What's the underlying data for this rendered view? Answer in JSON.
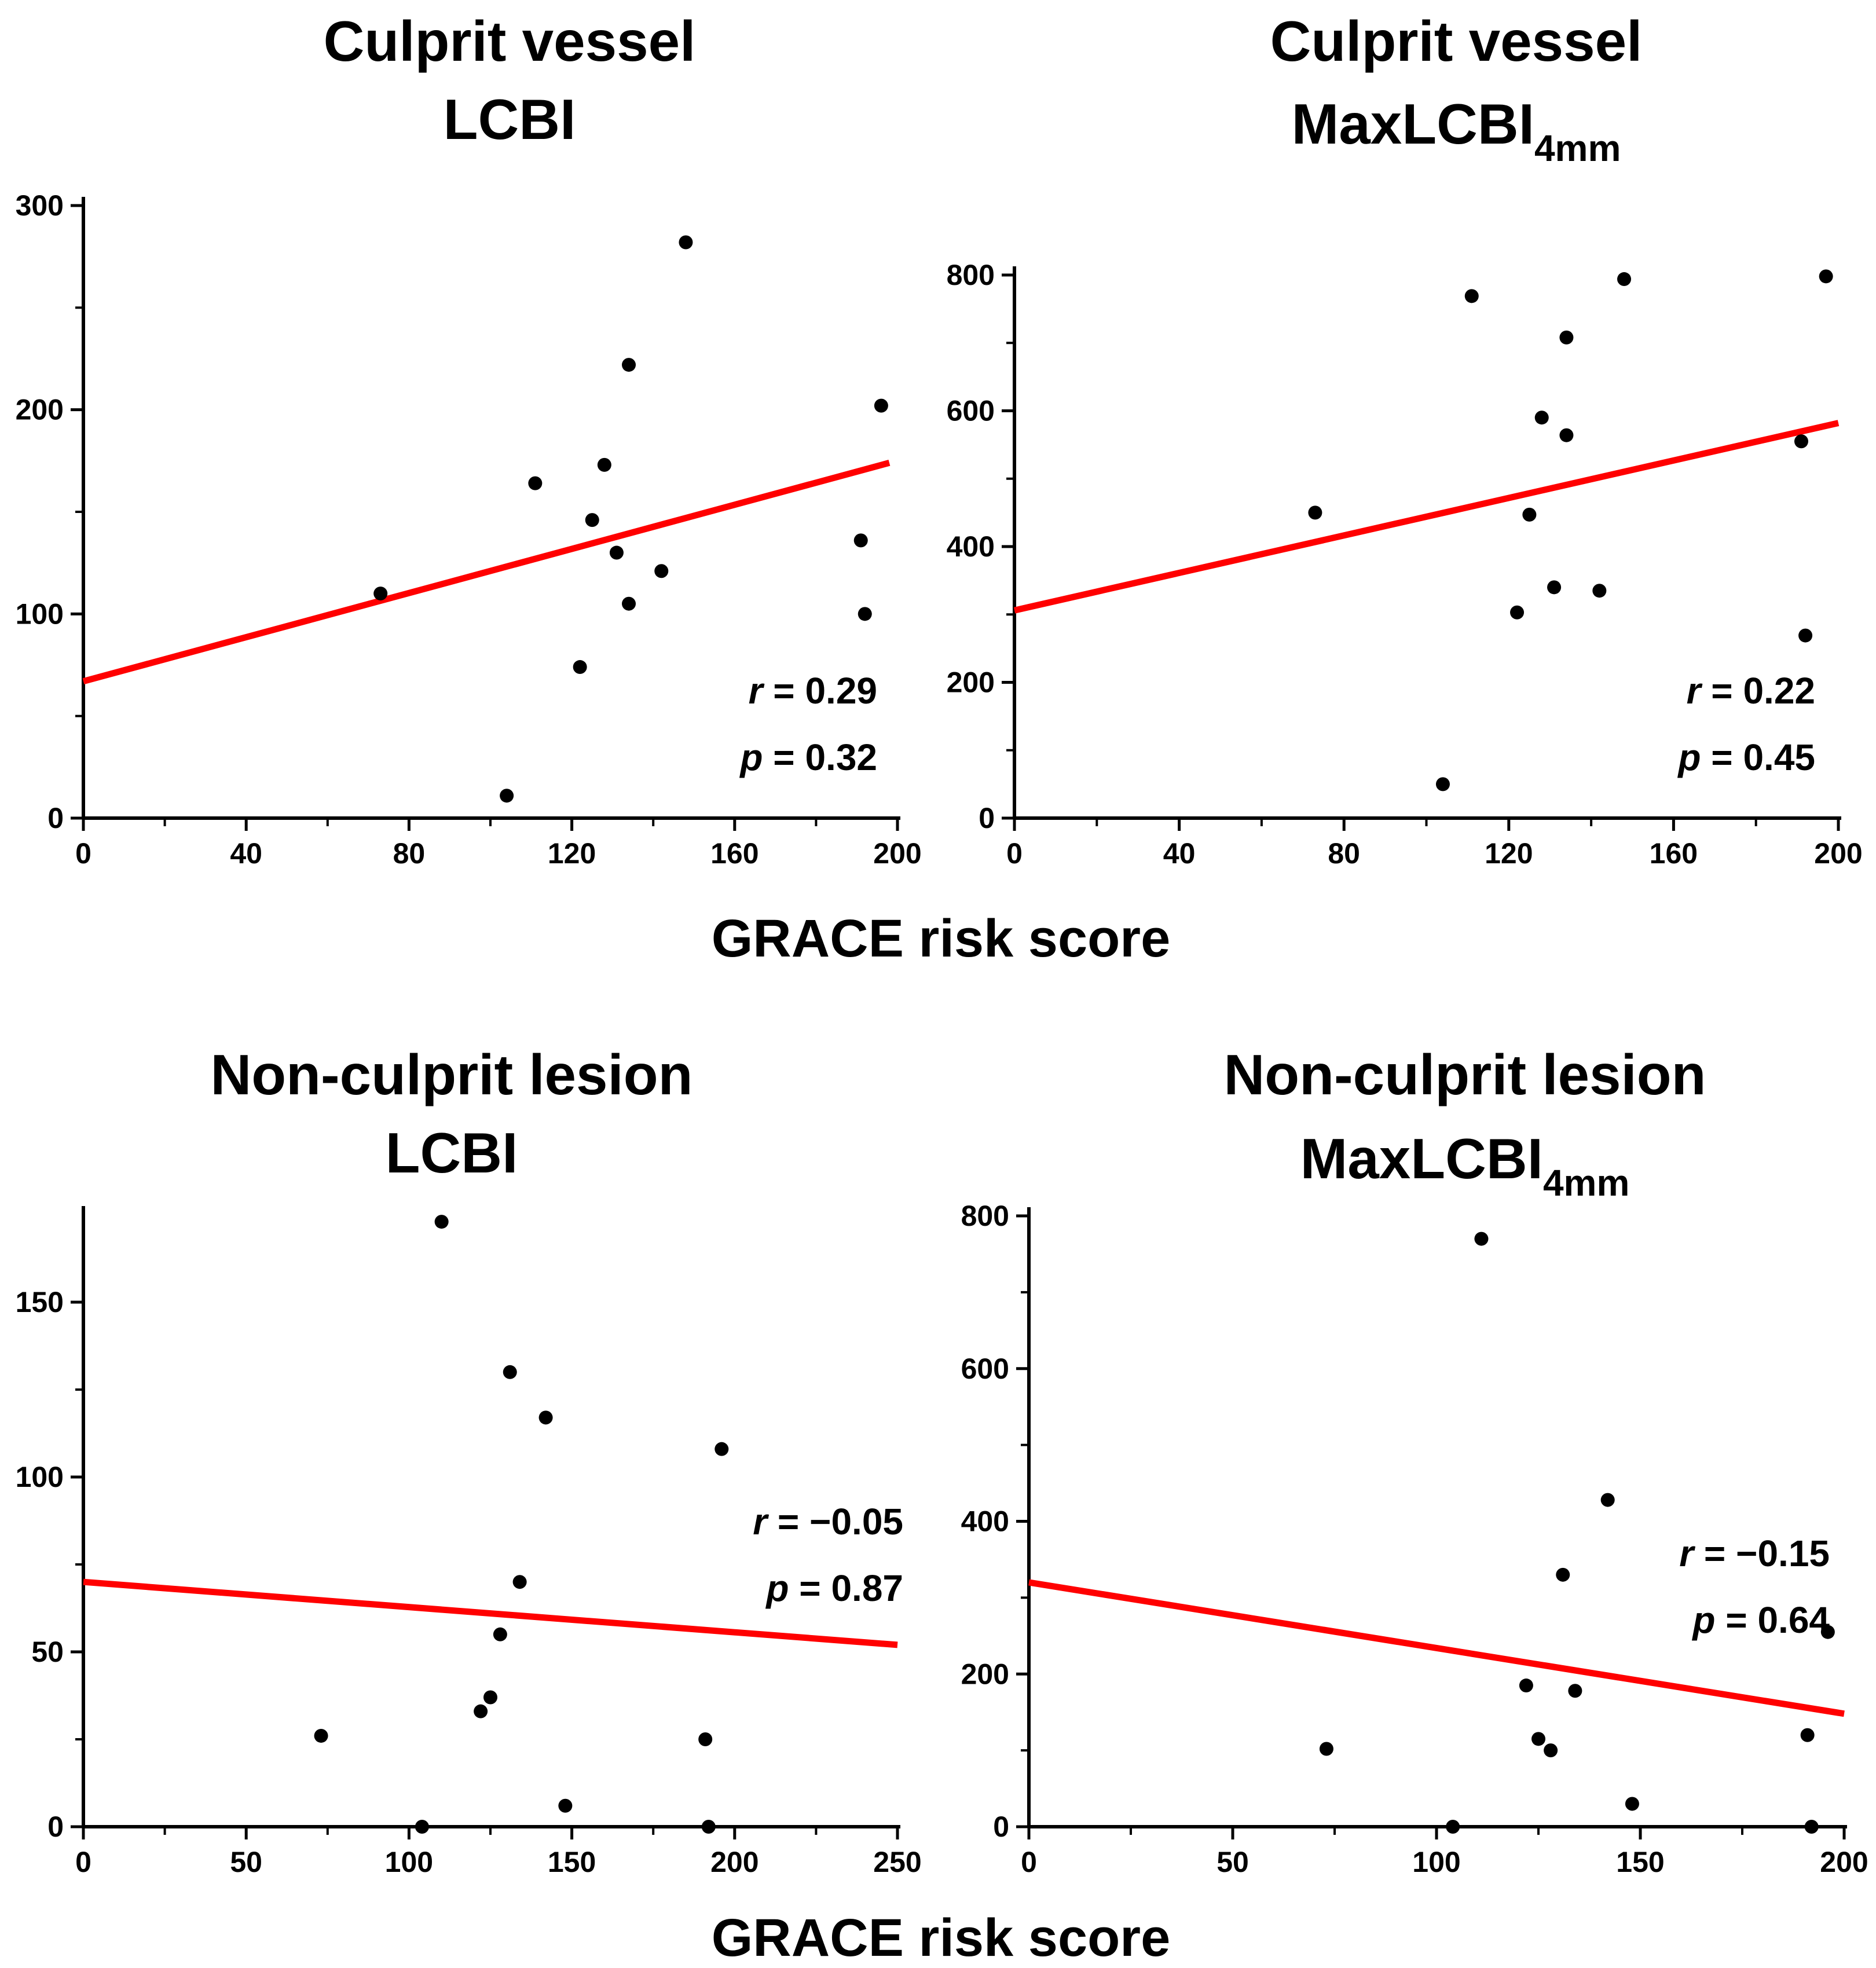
{
  "figure": {
    "shared_xlabel_top": "GRACE risk score",
    "shared_xlabel_bottom": "GRACE risk score",
    "regression_color": "#ff0000",
    "point_color": "#000000"
  },
  "chart_data": [
    {
      "type": "scatter",
      "title_line1": "Culprit vessel",
      "title_line2": "LCBI",
      "title_sub": "",
      "xlabel": "GRACE risk score",
      "ylabel": "",
      "xlim": [
        0,
        200
      ],
      "ylim": [
        0,
        300
      ],
      "xticks": [
        0,
        40,
        80,
        120,
        160,
        200
      ],
      "xminor": [
        20,
        60,
        100,
        140,
        180
      ],
      "yticks": [
        0,
        100,
        200,
        300
      ],
      "yminor": [
        50,
        150,
        250
      ],
      "points": [
        {
          "x": 73,
          "y": 110
        },
        {
          "x": 104,
          "y": 11
        },
        {
          "x": 111,
          "y": 164
        },
        {
          "x": 122,
          "y": 74
        },
        {
          "x": 125,
          "y": 146
        },
        {
          "x": 128,
          "y": 173
        },
        {
          "x": 131,
          "y": 130
        },
        {
          "x": 134,
          "y": 222
        },
        {
          "x": 134,
          "y": 105
        },
        {
          "x": 142,
          "y": 121
        },
        {
          "x": 148,
          "y": 282
        },
        {
          "x": 191,
          "y": 136
        },
        {
          "x": 192,
          "y": 100
        },
        {
          "x": 196,
          "y": 202
        }
      ],
      "regression": {
        "x": [
          0,
          198
        ],
        "y": [
          67,
          174
        ]
      },
      "stat_r_label": "r",
      "stat_r_value": " = 0.29",
      "stat_p_label": "p",
      "stat_p_value": " = 0.32"
    },
    {
      "type": "scatter",
      "title_line1": "Culprit vessel",
      "title_line2": "MaxLCBI",
      "title_sub": "4mm",
      "xlabel": "GRACE risk score",
      "ylabel": "",
      "xlim": [
        0,
        200
      ],
      "ylim": [
        0,
        800
      ],
      "xticks": [
        0,
        40,
        80,
        120,
        160,
        200
      ],
      "xminor": [
        20,
        60,
        100,
        140,
        180
      ],
      "yticks": [
        0,
        200,
        400,
        600,
        800
      ],
      "yminor": [
        100,
        300,
        500,
        700
      ],
      "points": [
        {
          "x": 73,
          "y": 450
        },
        {
          "x": 104,
          "y": 50
        },
        {
          "x": 111,
          "y": 769
        },
        {
          "x": 122,
          "y": 303
        },
        {
          "x": 125,
          "y": 447
        },
        {
          "x": 128,
          "y": 590
        },
        {
          "x": 131,
          "y": 340
        },
        {
          "x": 134,
          "y": 708
        },
        {
          "x": 134,
          "y": 564
        },
        {
          "x": 142,
          "y": 335
        },
        {
          "x": 148,
          "y": 794
        },
        {
          "x": 191,
          "y": 555
        },
        {
          "x": 192,
          "y": 269
        },
        {
          "x": 197,
          "y": 798
        }
      ],
      "regression": {
        "x": [
          0,
          200
        ],
        "y": [
          306,
          582
        ]
      },
      "stat_r_label": "r",
      "stat_r_value": " = 0.22",
      "stat_p_label": "p",
      "stat_p_value": " = 0.45"
    },
    {
      "type": "scatter",
      "title_line1": "Non-culprit lesion",
      "title_line2": "LCBI",
      "title_sub": "",
      "xlabel": "GRACE risk score",
      "ylabel": "",
      "xlim": [
        0,
        250
      ],
      "ylim": [
        0,
        175
      ],
      "xticks": [
        0,
        50,
        100,
        150,
        200,
        250
      ],
      "xminor": [
        25,
        75,
        125,
        175,
        225
      ],
      "yticks": [
        0,
        50,
        100,
        150
      ],
      "yminor": [
        25,
        75,
        125
      ],
      "points": [
        {
          "x": 73,
          "y": 26
        },
        {
          "x": 104,
          "y": 0
        },
        {
          "x": 110,
          "y": 173
        },
        {
          "x": 122,
          "y": 33
        },
        {
          "x": 125,
          "y": 37
        },
        {
          "x": 128,
          "y": 55
        },
        {
          "x": 131,
          "y": 130
        },
        {
          "x": 134,
          "y": 70
        },
        {
          "x": 142,
          "y": 117
        },
        {
          "x": 148,
          "y": 6
        },
        {
          "x": 191,
          "y": 25
        },
        {
          "x": 192,
          "y": 0
        },
        {
          "x": 196,
          "y": 108
        }
      ],
      "regression": {
        "x": [
          0,
          250
        ],
        "y": [
          70,
          52
        ]
      },
      "stat_r_label": "r",
      "stat_r_value": " = −0.05",
      "stat_p_label": "p",
      "stat_p_value": " = 0.87"
    },
    {
      "type": "scatter",
      "title_line1": "Non-culprit lesion",
      "title_line2": "MaxLCBI",
      "title_sub": "4mm",
      "xlabel": "GRACE risk score",
      "ylabel": "",
      "xlim": [
        0,
        200
      ],
      "ylim": [
        0,
        800
      ],
      "xticks": [
        0,
        50,
        100,
        150,
        200
      ],
      "xminor": [
        25,
        75,
        125,
        175
      ],
      "yticks": [
        0,
        200,
        400,
        600,
        800
      ],
      "yminor": [
        100,
        300,
        500,
        700
      ],
      "points": [
        {
          "x": 73,
          "y": 102
        },
        {
          "x": 104,
          "y": 0
        },
        {
          "x": 111,
          "y": 770
        },
        {
          "x": 122,
          "y": 185
        },
        {
          "x": 125,
          "y": 115
        },
        {
          "x": 128,
          "y": 100
        },
        {
          "x": 131,
          "y": 330
        },
        {
          "x": 134,
          "y": 178
        },
        {
          "x": 142,
          "y": 428
        },
        {
          "x": 148,
          "y": 30
        },
        {
          "x": 191,
          "y": 120
        },
        {
          "x": 192,
          "y": 0
        },
        {
          "x": 196,
          "y": 255
        }
      ],
      "regression": {
        "x": [
          0,
          200
        ],
        "y": [
          320,
          148
        ]
      },
      "stat_r_label": "r",
      "stat_r_value": " = −0.15",
      "stat_p_label": "p",
      "stat_p_value": " = 0.64"
    }
  ]
}
